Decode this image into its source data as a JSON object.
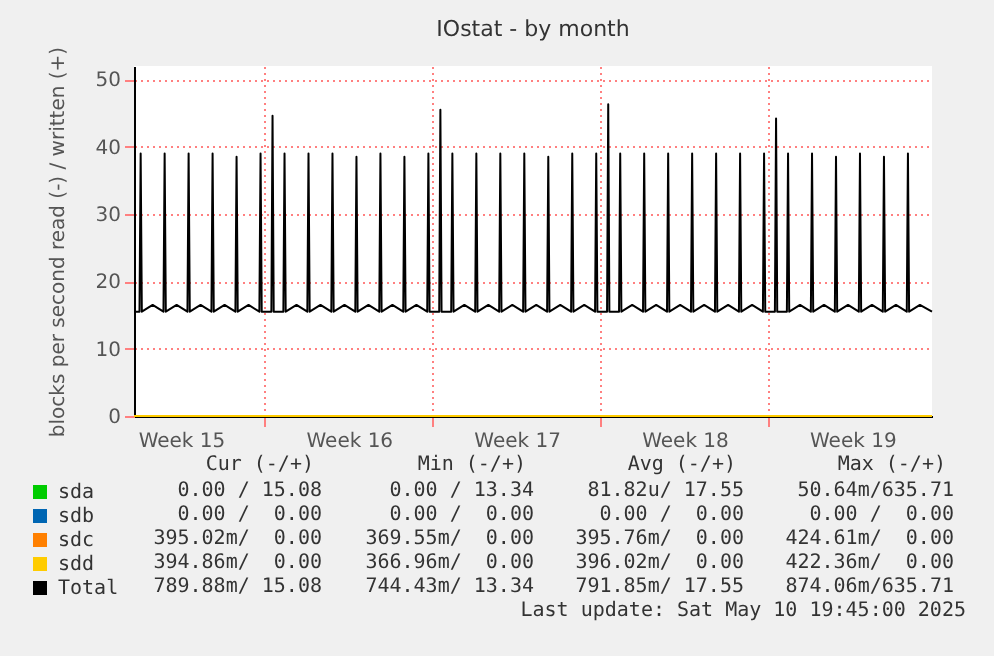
{
  "chart_data": {
    "type": "line",
    "title": "IOstat - by month",
    "ylabel": "blocks per second read (-) / written (+)",
    "xlim": [
      "2025-04-07T13:00",
      "2025-05-10T19:45"
    ],
    "xticks": [
      {
        "value": "2025-04-09T12:00",
        "label": "Week 15"
      },
      {
        "value": "2025-04-13T00:00",
        "label": null
      },
      {
        "value": "2025-04-16T12:00",
        "label": "Week 16"
      },
      {
        "value": "2025-04-20T00:00",
        "label": null
      },
      {
        "value": "2025-04-23T12:00",
        "label": "Week 17"
      },
      {
        "value": "2025-04-27T00:00",
        "label": null
      },
      {
        "value": "2025-04-30T12:00",
        "label": "Week 18"
      },
      {
        "value": "2025-05-04T00:00",
        "label": null
      },
      {
        "value": "2025-05-07T12:00",
        "label": "Week 19"
      }
    ],
    "ylim": [
      0,
      52
    ],
    "yticks": [
      0,
      10,
      20,
      30,
      40,
      50
    ],
    "grid": true,
    "legend": "bottom left",
    "x": [
      "2025-04-07T13:00",
      "2025-04-07T18:30",
      "2025-04-07T19:40",
      "2025-04-07T20:50",
      "2025-04-08T07:40",
      "2025-04-08T18:30",
      "2025-04-08T19:40",
      "2025-04-08T20:50",
      "2025-04-09T07:40",
      "2025-04-09T18:30",
      "2025-04-09T19:40",
      "2025-04-09T20:50",
      "2025-04-10T07:40",
      "2025-04-10T18:30",
      "2025-04-10T19:40",
      "2025-04-10T20:50",
      "2025-04-11T07:40",
      "2025-04-11T18:30",
      "2025-04-11T19:40",
      "2025-04-11T20:50",
      "2025-04-12T07:40",
      "2025-04-12T18:30",
      "2025-04-12T19:40",
      "2025-04-12T20:50",
      "2025-04-13T06:30",
      "2025-04-13T07:40",
      "2025-04-13T08:50",
      "2025-04-13T18:30",
      "2025-04-13T19:40",
      "2025-04-13T20:50",
      "2025-04-14T07:40",
      "2025-04-14T18:30",
      "2025-04-14T19:40",
      "2025-04-14T20:50",
      "2025-04-15T07:40",
      "2025-04-15T18:30",
      "2025-04-15T19:40",
      "2025-04-15T20:50",
      "2025-04-16T07:40",
      "2025-04-16T18:30",
      "2025-04-16T19:40",
      "2025-04-16T20:50",
      "2025-04-17T07:40",
      "2025-04-17T18:30",
      "2025-04-17T19:40",
      "2025-04-17T20:50",
      "2025-04-18T07:40",
      "2025-04-18T18:30",
      "2025-04-18T19:40",
      "2025-04-18T20:50",
      "2025-04-19T07:40",
      "2025-04-19T18:30",
      "2025-04-19T19:40",
      "2025-04-19T20:50",
      "2025-04-20T06:30",
      "2025-04-20T07:40",
      "2025-04-20T08:50",
      "2025-04-20T18:30",
      "2025-04-20T19:40",
      "2025-04-20T20:50",
      "2025-04-21T07:40",
      "2025-04-21T18:30",
      "2025-04-21T19:40",
      "2025-04-21T20:50",
      "2025-04-22T07:40",
      "2025-04-22T18:30",
      "2025-04-22T19:40",
      "2025-04-22T20:50",
      "2025-04-23T07:40",
      "2025-04-23T18:30",
      "2025-04-23T19:40",
      "2025-04-23T20:50",
      "2025-04-24T07:40",
      "2025-04-24T18:30",
      "2025-04-24T19:40",
      "2025-04-24T20:50",
      "2025-04-25T07:40",
      "2025-04-25T18:30",
      "2025-04-25T19:40",
      "2025-04-25T20:50",
      "2025-04-26T07:40",
      "2025-04-26T18:30",
      "2025-04-26T19:40",
      "2025-04-26T20:50",
      "2025-04-27T06:30",
      "2025-04-27T07:40",
      "2025-04-27T08:50",
      "2025-04-27T18:30",
      "2025-04-27T19:40",
      "2025-04-27T20:50",
      "2025-04-28T07:40",
      "2025-04-28T18:30",
      "2025-04-28T19:40",
      "2025-04-28T20:50",
      "2025-04-29T07:40",
      "2025-04-29T18:30",
      "2025-04-29T19:40",
      "2025-04-29T20:50",
      "2025-04-30T07:40",
      "2025-04-30T18:30",
      "2025-04-30T19:40",
      "2025-04-30T20:50",
      "2025-05-01T07:40",
      "2025-05-01T18:30",
      "2025-05-01T19:40",
      "2025-05-01T20:50",
      "2025-05-02T07:40",
      "2025-05-02T18:30",
      "2025-05-02T19:40",
      "2025-05-02T20:50",
      "2025-05-03T07:40",
      "2025-05-03T18:30",
      "2025-05-03T19:40",
      "2025-05-03T20:50",
      "2025-05-04T06:30",
      "2025-05-04T07:40",
      "2025-05-04T08:50",
      "2025-05-04T18:30",
      "2025-05-04T19:40",
      "2025-05-04T20:50",
      "2025-05-05T07:40",
      "2025-05-05T18:30",
      "2025-05-05T19:40",
      "2025-05-05T20:50",
      "2025-05-06T07:40",
      "2025-05-06T18:30",
      "2025-05-06T19:40",
      "2025-05-06T20:50",
      "2025-05-07T07:40",
      "2025-05-07T18:30",
      "2025-05-07T19:40",
      "2025-05-07T20:50",
      "2025-05-08T07:40",
      "2025-05-08T18:30",
      "2025-05-08T19:40",
      "2025-05-08T20:50",
      "2025-05-09T07:40",
      "2025-05-09T18:30",
      "2025-05-09T19:40",
      "2025-05-09T20:50",
      "2025-05-10T07:40",
      "2025-05-10T19:45"
    ],
    "series": [
      {
        "name": "sda",
        "color": "#00cc00",
        "values": [
          null,
          null,
          null,
          null,
          null,
          null,
          null,
          null,
          null,
          null,
          null,
          null,
          null,
          null,
          null,
          null,
          null,
          null,
          null,
          null,
          null,
          null,
          null,
          null,
          null,
          null,
          null,
          null,
          null,
          null,
          null,
          null,
          null,
          null,
          null,
          null,
          null,
          null,
          null,
          null,
          null,
          null,
          null,
          null,
          null,
          null,
          null,
          null,
          null,
          null,
          null,
          null,
          null,
          null,
          null,
          null,
          null,
          null,
          null,
          null,
          null,
          null,
          null,
          null,
          null,
          null,
          null,
          null,
          null,
          null,
          null,
          null,
          null,
          null,
          null,
          null,
          null,
          null,
          null,
          null,
          null,
          null,
          null,
          null,
          null,
          null,
          null,
          null,
          null,
          null,
          null,
          null,
          null,
          null,
          null,
          null,
          null,
          null,
          null,
          null,
          null,
          null,
          null,
          null,
          null,
          null,
          null,
          null,
          null,
          null,
          null,
          null,
          null,
          null,
          null,
          null,
          null,
          null,
          null,
          null,
          null,
          null,
          null,
          null,
          null,
          null,
          null,
          null,
          null,
          null,
          null,
          null,
          null,
          null,
          null,
          null,
          null,
          null,
          null,
          null,
          null,
          null
        ]
      },
      {
        "name": "sdb",
        "color": "#0066b3",
        "values": [
          null,
          null,
          null,
          null,
          null,
          null,
          null,
          null,
          null,
          null,
          null,
          null,
          null,
          null,
          null,
          null,
          null,
          null,
          null,
          null,
          null,
          null,
          null,
          null,
          null,
          null,
          null,
          null,
          null,
          null,
          null,
          null,
          null,
          null,
          null,
          null,
          null,
          null,
          null,
          null,
          null,
          null,
          null,
          null,
          null,
          null,
          null,
          null,
          null,
          null,
          null,
          null,
          null,
          null,
          null,
          null,
          null,
          null,
          null,
          null,
          null,
          null,
          null,
          null,
          null,
          null,
          null,
          null,
          null,
          null,
          null,
          null,
          null,
          null,
          null,
          null,
          null,
          null,
          null,
          null,
          null,
          null,
          null,
          null,
          null,
          null,
          null,
          null,
          null,
          null,
          null,
          null,
          null,
          null,
          null,
          null,
          null,
          null,
          null,
          null,
          null,
          null,
          null,
          null,
          null,
          null,
          null,
          null,
          null,
          null,
          null,
          null,
          null,
          null,
          null,
          null,
          null,
          null,
          null,
          null,
          null,
          null,
          null,
          null,
          null,
          null,
          null,
          null,
          null,
          null,
          null,
          null,
          null,
          null,
          null,
          null,
          null,
          null,
          null,
          null,
          null,
          null
        ]
      },
      {
        "name": "sdc",
        "color": "#ff8000",
        "values": [
          null,
          null,
          null,
          null,
          null,
          null,
          null,
          null,
          null,
          null,
          null,
          null,
          null,
          null,
          null,
          null,
          null,
          null,
          null,
          null,
          null,
          null,
          null,
          null,
          null,
          null,
          null,
          null,
          null,
          null,
          null,
          null,
          null,
          null,
          null,
          null,
          null,
          null,
          null,
          null,
          null,
          null,
          null,
          null,
          null,
          null,
          null,
          null,
          null,
          null,
          null,
          null,
          null,
          null,
          null,
          null,
          null,
          null,
          null,
          null,
          null,
          null,
          null,
          null,
          null,
          null,
          null,
          null,
          null,
          null,
          null,
          null,
          null,
          null,
          null,
          null,
          null,
          null,
          null,
          null,
          null,
          null,
          null,
          null,
          null,
          null,
          null,
          null,
          null,
          null,
          null,
          null,
          null,
          null,
          null,
          null,
          null,
          null,
          null,
          null,
          null,
          null,
          null,
          null,
          null,
          null,
          null,
          null,
          null,
          null,
          null,
          null,
          null,
          null,
          null,
          null,
          null,
          null,
          null,
          null,
          null,
          null,
          null,
          null,
          null,
          null,
          null,
          null,
          null,
          null,
          null,
          null,
          null,
          null,
          null,
          null,
          null,
          null,
          null,
          null,
          null,
          null
        ]
      },
      {
        "name": "sdd",
        "color": "#ffcc00",
        "values": [
          0,
          0,
          0,
          0,
          0,
          0,
          0,
          0,
          0,
          0,
          0,
          0,
          0,
          0,
          0,
          0,
          0,
          0,
          0,
          0,
          0,
          0,
          0,
          0,
          0,
          0,
          0,
          0,
          0,
          0,
          0,
          0,
          0,
          0,
          0,
          0,
          0,
          0,
          0,
          0,
          0,
          0,
          0,
          0,
          0,
          0,
          0,
          0,
          0,
          0,
          0,
          0,
          0,
          0,
          0,
          0,
          0,
          0,
          0,
          0,
          0,
          0,
          0,
          0,
          0,
          0,
          0,
          0,
          0,
          0,
          0,
          0,
          0,
          0,
          0,
          0,
          0,
          0,
          0,
          0,
          0,
          0,
          0,
          0,
          0,
          0,
          0,
          0,
          0,
          0,
          0,
          0,
          0,
          0,
          0,
          0,
          0,
          0,
          0,
          0,
          0,
          0,
          0,
          0,
          0,
          0,
          0,
          0,
          0,
          0,
          0,
          0,
          0,
          0,
          0,
          0,
          0,
          0,
          0,
          0,
          0,
          0,
          0,
          0,
          0,
          0,
          0,
          0,
          0,
          0,
          0,
          0,
          0,
          0,
          0,
          0,
          0,
          0,
          0,
          0,
          0,
          0
        ]
      },
      {
        "name": "Total",
        "color": "#000000",
        "values": [
          15.5,
          15.5,
          39,
          15.5,
          16.5,
          15.5,
          39,
          15.5,
          16.5,
          15.5,
          39,
          15.5,
          16.5,
          15.5,
          39,
          15.5,
          16.5,
          15.5,
          38.5,
          15.5,
          16.5,
          15.5,
          39,
          15.5,
          15.5,
          44.6,
          15.5,
          15.5,
          39,
          15.5,
          16.5,
          15.5,
          39,
          15.5,
          16.5,
          15.5,
          39,
          15.5,
          16.5,
          15.5,
          38.5,
          15.5,
          16.5,
          15.5,
          39,
          15.5,
          16.5,
          15.5,
          38.5,
          15.5,
          16.5,
          15.5,
          39,
          15.5,
          15.5,
          45.5,
          15.5,
          15.5,
          39,
          15.5,
          16.5,
          15.5,
          39,
          15.5,
          16.5,
          15.5,
          39,
          15.5,
          16.5,
          15.5,
          39,
          15.5,
          16.5,
          15.5,
          38.5,
          15.5,
          16.5,
          15.5,
          39,
          15.5,
          16.5,
          15.5,
          39,
          15.5,
          15.5,
          46.3,
          15.5,
          15.5,
          39,
          15.5,
          16.5,
          15.5,
          39,
          15.5,
          16.5,
          15.5,
          39,
          15.5,
          16.5,
          15.5,
          39,
          15.5,
          16.5,
          15.5,
          39,
          15.5,
          16.5,
          15.5,
          39,
          15.5,
          16.5,
          15.5,
          39,
          15.5,
          15.5,
          44.2,
          15.5,
          15.5,
          39,
          15.5,
          16.5,
          15.5,
          39,
          15.5,
          16.5,
          15.5,
          38.5,
          15.5,
          16.5,
          15.5,
          39,
          15.5,
          16.5,
          15.5,
          38.5,
          15.5,
          16.5,
          15.5,
          39,
          15.5,
          16.5,
          15.5
        ]
      }
    ],
    "annotations": [
      "Cur (-/+)",
      "Min (-/+)",
      "Avg (-/+)",
      "Max (-/+)",
      "0.00 / 15.08",
      "0.00 / 13.34",
      "81.82u/ 17.55",
      "50.64m/635.71",
      "0.00 /  0.00",
      "0.00 /  0.00",
      "0.00 /  0.00",
      "0.00 /  0.00",
      "395.02m/  0.00",
      "369.55m/  0.00",
      "395.76m/  0.00",
      "424.61m/  0.00",
      "394.86m/  0.00",
      "366.96m/  0.00",
      "396.02m/  0.00",
      "422.36m/  0.00",
      "789.88m/ 15.08",
      "744.43m/ 13.34",
      "791.85m/ 17.55",
      "874.06m/635.71",
      "Last update: Sat May 10 19:45:00 2025"
    ]
  }
}
